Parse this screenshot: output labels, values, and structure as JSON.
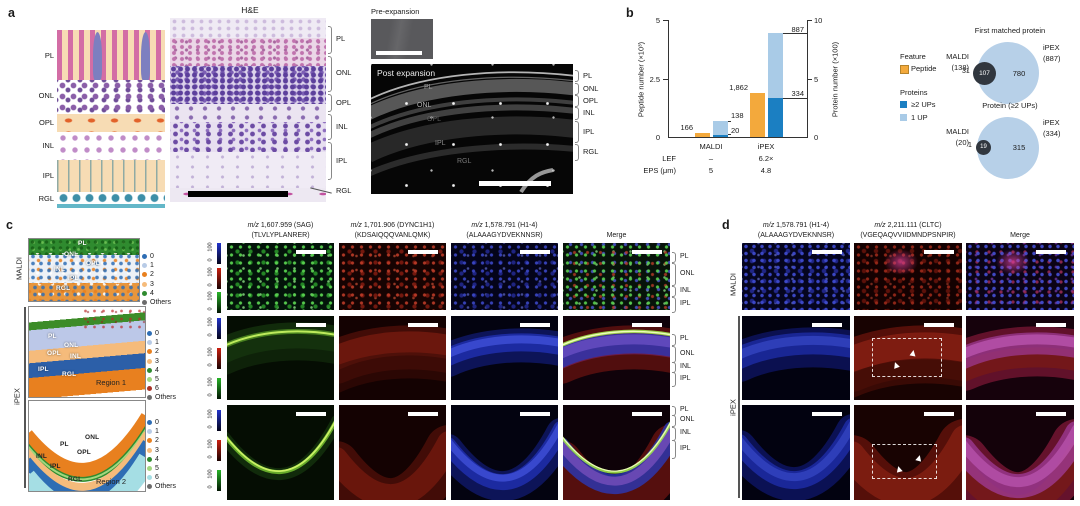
{
  "panel_a": {
    "label": "a",
    "schematic_layers": [
      "PL",
      "ONL",
      "OPL",
      "INL",
      "IPL",
      "RGL"
    ],
    "he_title": "H&E",
    "he_brackets": [
      "PL",
      "ONL",
      "OPL",
      "INL",
      "IPL",
      "RGL"
    ],
    "pre_label": "Pre-expansion",
    "post_label": "Post expansion",
    "post_internal": [
      "PL",
      "ONL",
      "OPL",
      "IPL",
      "RGL"
    ],
    "post_brackets": [
      "PL",
      "ONL",
      "OPL",
      "INL",
      "IPL",
      "RGL"
    ]
  },
  "panel_b": {
    "label": "b",
    "chart_data": {
      "type": "bar",
      "left_axis": {
        "label": "Peptide number (×10³)",
        "ticks": [
          "0",
          "2.5",
          "5"
        ],
        "max": 5000
      },
      "right_axis": {
        "label": "Protein number (×100)",
        "ticks": [
          "0",
          "5",
          "10"
        ],
        "max": 1000
      },
      "groups": [
        {
          "name": "MALDI",
          "lef": "–",
          "eps": "5",
          "peptide": 166,
          "peptide_label": "166",
          "protein_2ups": 20,
          "protein_1up": 118,
          "protein_total": 138,
          "protein_total_label": "138",
          "protein_2ups_label": "20"
        },
        {
          "name": "iPEX",
          "lef": "6.2×",
          "eps": "4.8",
          "peptide": 1862,
          "peptide_label": "1,862",
          "protein_2ups": 334,
          "protein_1up": 553,
          "protein_total": 887,
          "protein_total_label": "887",
          "protein_2ups_label": "334"
        }
      ],
      "row_headers": {
        "lef": "LEF",
        "eps": "EPS (μm)"
      },
      "colors": {
        "peptide": "#F3A93C",
        "ups2": "#1B7FC2",
        "up1": "#A9CBE7"
      }
    },
    "legend": {
      "feature_title": "Feature",
      "peptide": "Peptide",
      "proteins_title": "Proteins",
      "ups2": "≥2 UPs",
      "up1": "1 UP"
    },
    "venn": [
      {
        "title": "First matched protein",
        "left_name": "MALDI",
        "left_count": "(138)",
        "right_name": "iPEX",
        "right_count": "(887)",
        "left_only": "31",
        "overlap": "107",
        "right_only": "780",
        "big_color": "#B7D0E8",
        "small_color": "#31373F"
      },
      {
        "title": "Protein (≥2 UPs)",
        "left_name": "MALDI",
        "left_count": "(20)",
        "right_name": "iPEX",
        "right_count": "(334)",
        "left_only": "1",
        "overlap": "19",
        "right_only": "315",
        "big_color": "#B7D0E8",
        "small_color": "#31373F"
      }
    ]
  },
  "panel_c": {
    "label": "c",
    "modality_labels": [
      "MALDI",
      "iPEX"
    ],
    "maps": [
      {
        "region_label": "",
        "layer_labels": [
          "PL",
          "ONL",
          "OPL",
          "INL",
          "IPL",
          "RGL"
        ],
        "legend": [
          {
            "label": "0",
            "color": "#2E6DB4"
          },
          {
            "label": "1",
            "color": "#B8CBE6"
          },
          {
            "label": "2",
            "color": "#E8801F"
          },
          {
            "label": "3",
            "color": "#F5BB7B"
          },
          {
            "label": "4",
            "color": "#2F8B2F"
          },
          {
            "label": "Others",
            "color": "#6B6B6B"
          }
        ]
      },
      {
        "region_label": "Region 1",
        "layer_labels": [
          "PL",
          "ONL",
          "OPL",
          "INL",
          "IPL",
          "RGL"
        ],
        "legend": [
          {
            "label": "0",
            "color": "#2E6DB4"
          },
          {
            "label": "1",
            "color": "#B8CBE6"
          },
          {
            "label": "2",
            "color": "#E8801F"
          },
          {
            "label": "3",
            "color": "#F5BB7B"
          },
          {
            "label": "4",
            "color": "#2F8B2F"
          },
          {
            "label": "5",
            "color": "#A1D77E"
          },
          {
            "label": "6",
            "color": "#A93226"
          },
          {
            "label": "Others",
            "color": "#6B6B6B"
          }
        ]
      },
      {
        "region_label": "Region 2",
        "layer_labels": [
          "PL",
          "ONL",
          "OPL",
          "INL",
          "IPL",
          "RGL"
        ],
        "legend": [
          {
            "label": "0",
            "color": "#2E6DB4"
          },
          {
            "label": "1",
            "color": "#B8CBE6"
          },
          {
            "label": "2",
            "color": "#E8801F"
          },
          {
            "label": "3",
            "color": "#F5BB7B"
          },
          {
            "label": "4",
            "color": "#2F8B2F"
          },
          {
            "label": "5",
            "color": "#A1D77E"
          },
          {
            "label": "6",
            "color": "#A5DEE4"
          },
          {
            "label": "Others",
            "color": "#6B6B6B"
          }
        ]
      }
    ],
    "colorbar_ticks": [
      "100",
      "0"
    ],
    "columns": [
      {
        "mz": "m/z",
        "ion": "1,607.959 (SAG)",
        "peptide": "(TLVLYPLANRER)"
      },
      {
        "mz": "m/z",
        "ion": "1,701.906 (DYNC1H1)",
        "peptide": "(KDSAIQQQVANLQMK)"
      },
      {
        "mz": "m/z",
        "ion": "1,578.791 (H1-4)",
        "peptide": "(ALAAAGYDVEKNNSR)"
      },
      {
        "mz": "",
        "ion": "Merge",
        "peptide": ""
      }
    ],
    "bracket_labels": [
      [
        "PL",
        "ONL",
        "INL",
        "IPL"
      ],
      [
        "PL",
        "ONL",
        "INL",
        "IPL"
      ],
      [
        "PL",
        "ONL",
        "INL",
        "IPL"
      ]
    ]
  },
  "panel_d": {
    "label": "d",
    "modality_labels": [
      "MALDI",
      "iPEX"
    ],
    "columns": [
      {
        "mz": "m/z",
        "ion": "1,578.791 (H1-4)",
        "peptide": "(ALAAAGYDVEKNNSR)"
      },
      {
        "mz": "m/z",
        "ion": "2,211.111 (CLTC)",
        "peptide": "(VGEQAQVVIIDMNDPSNPIR)"
      },
      {
        "mz": "",
        "ion": "Merge",
        "peptide": ""
      }
    ]
  }
}
